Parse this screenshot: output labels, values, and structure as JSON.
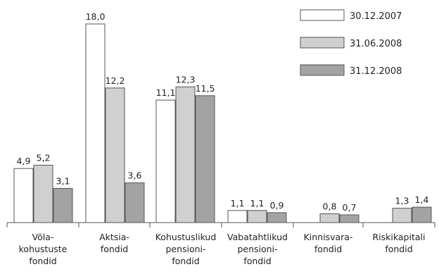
{
  "chart_data": {
    "type": "bar",
    "categories": [
      [
        "Võla-",
        "kohustuste",
        "fondid"
      ],
      [
        "Aktsia-",
        "fondid"
      ],
      [
        "Kohustuslikud",
        "pensioni-",
        "fondid"
      ],
      [
        "Vabatahtlikud",
        "pensioni-",
        "fondid"
      ],
      [
        "Kinnisvara-",
        "fondid"
      ],
      [
        "Riskikapitali",
        "fondid"
      ]
    ],
    "series": [
      {
        "name": "30.12.2007",
        "color": "#ffffff",
        "values": [
          4.9,
          18.0,
          11.1,
          1.1,
          null,
          null
        ],
        "labels": [
          "4,9",
          "18,0",
          "11,1",
          "1,1",
          null,
          null
        ]
      },
      {
        "name": "31.06.2008",
        "color": "#d0d0d0",
        "values": [
          5.2,
          12.2,
          12.3,
          1.1,
          0.8,
          1.3
        ],
        "labels": [
          "5,2",
          "12,2",
          "12,3",
          "1,1",
          "0,8",
          "1,3"
        ]
      },
      {
        "name": "31.12.2008",
        "color": "#a3a3a3",
        "values": [
          3.1,
          3.6,
          11.5,
          0.9,
          0.7,
          1.4
        ],
        "labels": [
          "3,1",
          "3,6",
          "11,5",
          "0,9",
          "0,7",
          "1,4"
        ]
      }
    ],
    "ylim": [
      0,
      18
    ],
    "legend_position": "top-right",
    "grid": false,
    "title": "",
    "xlabel": "",
    "ylabel": ""
  }
}
